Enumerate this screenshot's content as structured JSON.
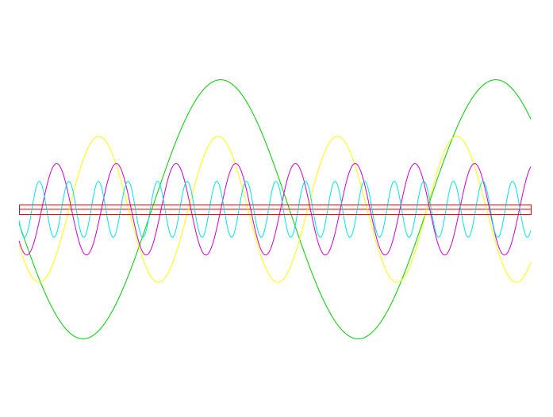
{
  "chart_data": {
    "type": "line",
    "title": "",
    "xlabel": "",
    "ylabel": "",
    "grid": false,
    "legend": "none",
    "xlim": [
      0,
      1
    ],
    "ylim": [
      -1,
      1
    ],
    "frame_color": "#ff0000",
    "series": [
      {
        "color": "#ff0000",
        "kind": "flat",
        "amplitude": 0.0,
        "cycles": 0,
        "phase": 0.0,
        "offset": 0.0
      },
      {
        "color": "#00cc00",
        "kind": "sine",
        "amplitude": 0.95,
        "cycles": 1.86,
        "phase": 3.25,
        "offset": 0.0
      },
      {
        "color": "#ffff00",
        "kind": "sine",
        "amplitude": 0.535,
        "cycles": 4.29,
        "phase": 3.65,
        "offset": 0.0
      },
      {
        "color": "#cc00cc",
        "kind": "sine",
        "amplitude": 0.335,
        "cycles": 8.57,
        "phase": 3.9,
        "offset": 0.0
      },
      {
        "color": "#00e5e5",
        "kind": "sine",
        "amplitude": 0.205,
        "cycles": 17.3,
        "phase": 3.55,
        "offset": 0.0
      }
    ]
  }
}
